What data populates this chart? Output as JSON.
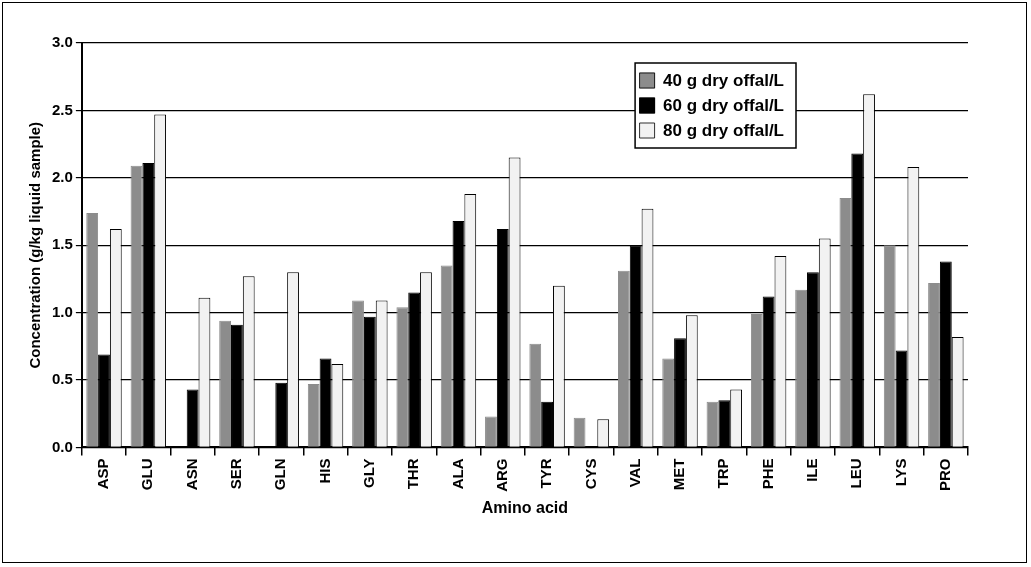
{
  "chart_data": {
    "type": "bar",
    "xlabel": "Amino acid",
    "ylabel": "Concentration (g/kg liquid sample)",
    "categories": [
      "ASP",
      "GLU",
      "ASN",
      "SER",
      "GLN",
      "HIS",
      "GLY",
      "THR",
      "ALA",
      "ARG",
      "TYR",
      "CYS",
      "VAL",
      "MET",
      "TRP",
      "PHE",
      "ILE",
      "LEU",
      "LYS",
      "PRO"
    ],
    "series": [
      {
        "name": "40 g dry offal/L",
        "color": "#8c8c8c",
        "values": [
          1.74,
          2.09,
          null,
          0.94,
          null,
          0.47,
          1.09,
          1.04,
          1.35,
          0.23,
          0.77,
          0.22,
          1.31,
          0.66,
          0.34,
          0.99,
          1.17,
          1.85,
          1.5,
          1.22
        ]
      },
      {
        "name": "60 g dry offal/L",
        "color": "#000000",
        "values": [
          0.69,
          2.11,
          0.43,
          0.91,
          0.48,
          0.66,
          0.97,
          1.15,
          1.68,
          1.62,
          0.34,
          null,
          1.5,
          0.81,
          0.35,
          1.12,
          1.3,
          2.18,
          0.72,
          1.38
        ]
      },
      {
        "name": "80 g dry offal/L",
        "color": "#f2f2f2",
        "values": [
          1.62,
          2.47,
          1.11,
          1.27,
          1.3,
          0.62,
          1.09,
          1.3,
          1.88,
          2.15,
          1.2,
          0.21,
          1.77,
          0.98,
          0.43,
          1.42,
          1.55,
          2.62,
          2.08,
          0.82
        ]
      }
    ],
    "ylim": [
      0,
      3
    ],
    "yticks": [
      {
        "value": 0,
        "label": "0.0"
      },
      {
        "value": 0.5,
        "label": "0.5"
      },
      {
        "value": 1,
        "label": "1.0"
      },
      {
        "value": 1.5,
        "label": "1.5"
      },
      {
        "value": 2,
        "label": "2.0"
      },
      {
        "value": 2.5,
        "label": "2.5"
      },
      {
        "value": 3,
        "label": "3.0"
      }
    ],
    "grid": "y",
    "legend": "top right"
  }
}
